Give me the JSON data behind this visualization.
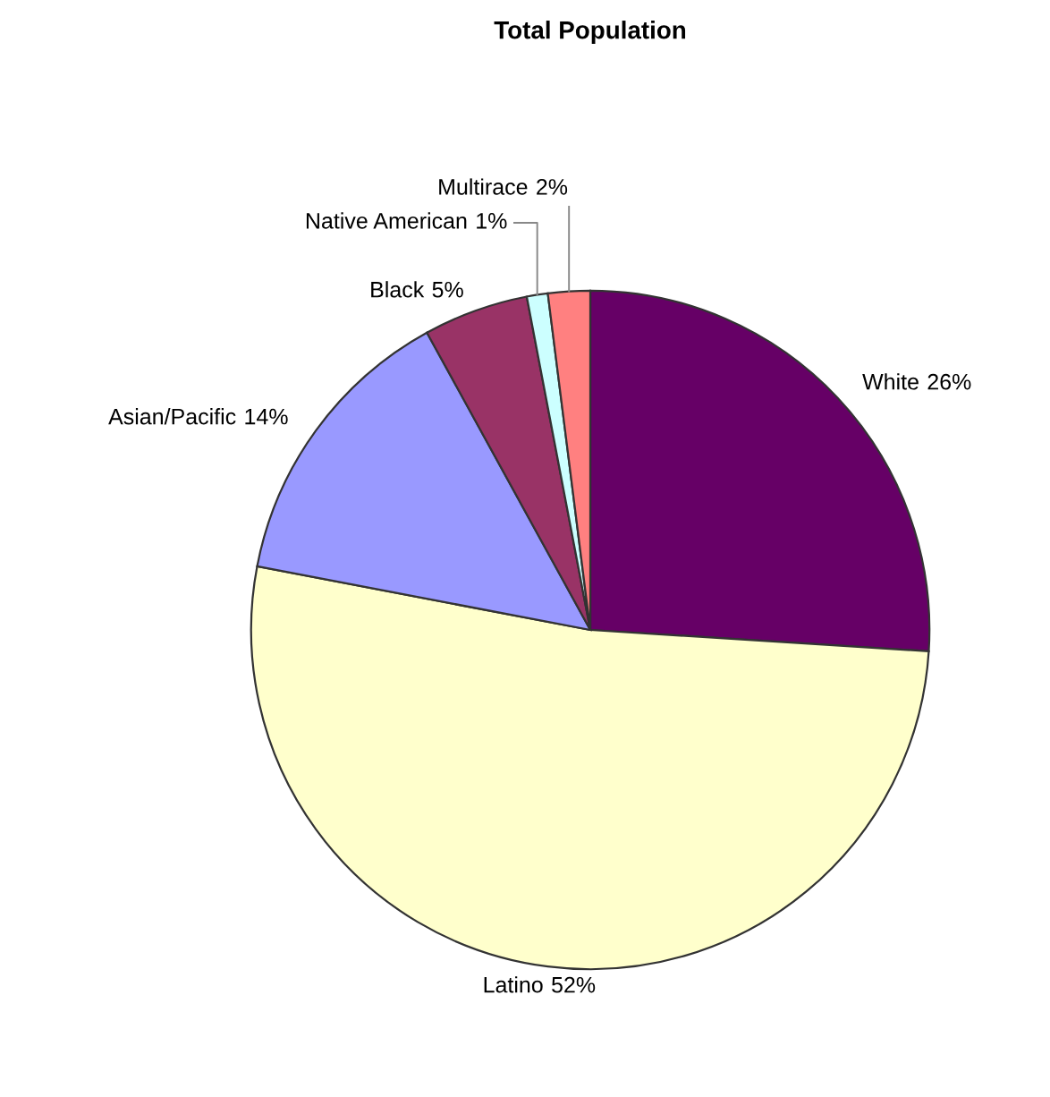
{
  "chart_data": {
    "type": "pie",
    "title": "Total Population",
    "categories": [
      "White",
      "Latino",
      "Asian/Pacific",
      "Black",
      "Native American",
      "Multirace"
    ],
    "values": [
      26,
      52,
      14,
      5,
      1,
      2
    ],
    "value_labels": [
      "26%",
      "52%",
      "14%",
      "5%",
      "1%",
      "2%"
    ],
    "colors": [
      "#660066",
      "#ffffcc",
      "#9999ff",
      "#993366",
      "#ccffff",
      "#ff8080"
    ]
  }
}
